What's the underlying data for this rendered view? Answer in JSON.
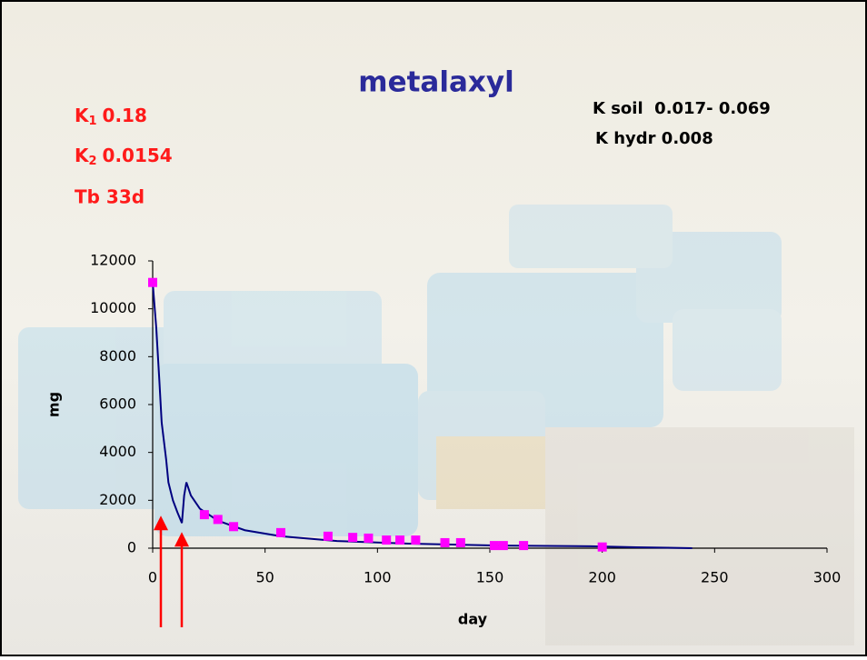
{
  "chart_data": {
    "type": "scatter",
    "title": "metalaxyl",
    "rate_constants": [
      {
        "symbol": "K",
        "sub": "1",
        "value": "0.18"
      },
      {
        "symbol": "K",
        "sub": "2",
        "value": "0.0154"
      }
    ],
    "half_life": "Tb 33d",
    "notes": [
      "K soil  0.017- 0.069",
      "K hydr 0.008"
    ],
    "xlabel": "day",
    "ylabel": "mg",
    "xlim": [
      0,
      300
    ],
    "xticks": [
      0,
      50,
      100,
      150,
      200,
      250,
      300
    ],
    "ylim": [
      0,
      12000
    ],
    "yticks": [
      0,
      2000,
      4000,
      6000,
      8000,
      10000,
      12000
    ],
    "series": [
      {
        "mode": "line",
        "color": "#000080",
        "x": [
          0,
          1.6,
          3,
          4,
          6,
          7,
          9,
          11,
          13,
          14,
          15,
          17,
          21,
          29,
          41,
          57,
          82,
          114,
          154,
          195,
          215,
          229,
          240
        ],
        "values": [
          11100,
          9200,
          6950,
          5250,
          3700,
          2750,
          2000,
          1500,
          1050,
          2200,
          2750,
          2200,
          1650,
          1150,
          750,
          500,
          300,
          190,
          110,
          80,
          40,
          20,
          0
        ]
      },
      {
        "mode": "markers",
        "color": "#ff00ff",
        "x": [
          0,
          23,
          29,
          36,
          57,
          78,
          89,
          96,
          104,
          110,
          117,
          130,
          137,
          152,
          156,
          165,
          200
        ],
        "values": [
          11100,
          1400,
          1200,
          900,
          650,
          500,
          450,
          420,
          340,
          340,
          340,
          230,
          230,
          110,
          110,
          110,
          50
        ]
      }
    ]
  }
}
